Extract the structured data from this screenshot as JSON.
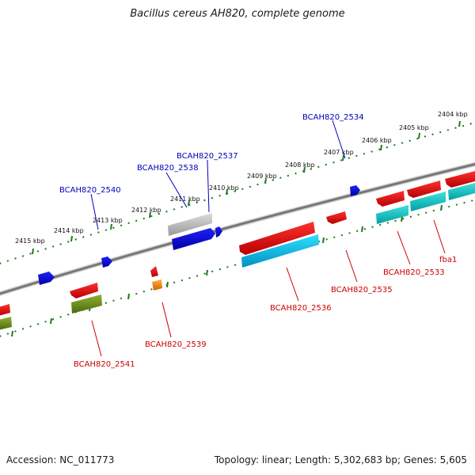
{
  "title": "Bacillus cereus AH820, complete genome",
  "footer": {
    "accession": "Accession: NC_011773",
    "summary": "Topology: linear; Length: 5,302,683 bp; Genes: 5,605"
  },
  "colors": {
    "backbone": "#7a7a7a",
    "scale": "#1e7a1e",
    "label_forward": "#0000bb",
    "label_reverse": "#cc0000",
    "gene_forward": "#0000ee",
    "gene_reverse": "#ee0000",
    "cds_cyan": "#00c8c8",
    "rna_gray": "#aaaaaa",
    "olive": "#6b8e23",
    "orange": "#ff8c00"
  },
  "upper_scale_labels": [
    "2404 kbp",
    "2405 kbp",
    "2406 kbp",
    "2407 kbp",
    "2408 kbp",
    "2409 kbp",
    "2410 kbp",
    "2411 kbp",
    "2412 kbp",
    "2413 kbp",
    "2414 kbp",
    "2415 kbp"
  ],
  "gene_labels": [
    {
      "text": "BCAH820_2534",
      "strand": "forward"
    },
    {
      "text": "BCAH820_2537",
      "strand": "forward"
    },
    {
      "text": "BCAH820_2538",
      "strand": "forward"
    },
    {
      "text": "BCAH820_2540",
      "strand": "forward"
    },
    {
      "text": "fba1",
      "strand": "reverse"
    },
    {
      "text": "BCAH820_2533",
      "strand": "reverse"
    },
    {
      "text": "BCAH820_2535",
      "strand": "reverse"
    },
    {
      "text": "BCAH820_2536",
      "strand": "reverse"
    },
    {
      "text": "BCAH820_2539",
      "strand": "reverse"
    },
    {
      "text": "BCAH820_2541",
      "strand": "reverse"
    }
  ]
}
